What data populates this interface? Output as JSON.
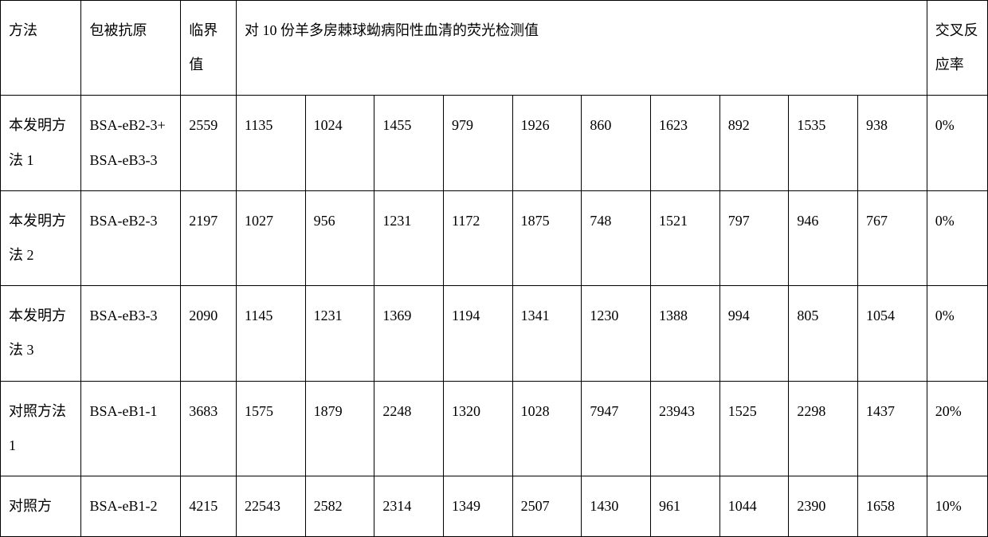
{
  "table": {
    "headers": {
      "method": "方法",
      "antigen": "包被抗原",
      "threshold": "临界值",
      "fluor": "对 10 份羊多房棘球蚴病阳性血清的荧光检测值",
      "rate": "交叉反应率"
    },
    "rows": [
      {
        "method": "本发明方法 1",
        "antigen": "BSA-eB2-3+BSA-eB3-3",
        "threshold": "2559",
        "vals": [
          "1135",
          "1024",
          "1455",
          "979",
          "1926",
          "860",
          "1623",
          "892",
          "1535",
          "938"
        ],
        "rate": "0%"
      },
      {
        "method": "本发明方法 2",
        "antigen": "BSA-eB2-3",
        "threshold": "2197",
        "vals": [
          "1027",
          "956",
          "1231",
          "1172",
          "1875",
          "748",
          "1521",
          "797",
          "946",
          "767"
        ],
        "rate": "0%"
      },
      {
        "method": "本发明方法 3",
        "antigen": "BSA-eB3-3",
        "threshold": "2090",
        "vals": [
          "1145",
          "1231",
          "1369",
          "1194",
          "1341",
          "1230",
          "1388",
          "994",
          "805",
          "1054"
        ],
        "rate": "0%"
      },
      {
        "method": "对照方法 1",
        "antigen": "BSA-eB1-1",
        "threshold": "3683",
        "vals": [
          "1575",
          "1879",
          "2248",
          "1320",
          "1028",
          "7947",
          "23943",
          "1525",
          "2298",
          "1437"
        ],
        "rate": "20%"
      },
      {
        "method": "对照方",
        "antigen": "BSA-eB1-2",
        "threshold": "4215",
        "vals": [
          "22543",
          "2582",
          "2314",
          "1349",
          "2507",
          "1430",
          "961",
          "1044",
          "2390",
          "1658"
        ],
        "rate": "10%"
      }
    ]
  },
  "style": {
    "border_color": "#000000",
    "text_color": "#000000",
    "font_size_pt": 14,
    "background": "#ffffff"
  }
}
